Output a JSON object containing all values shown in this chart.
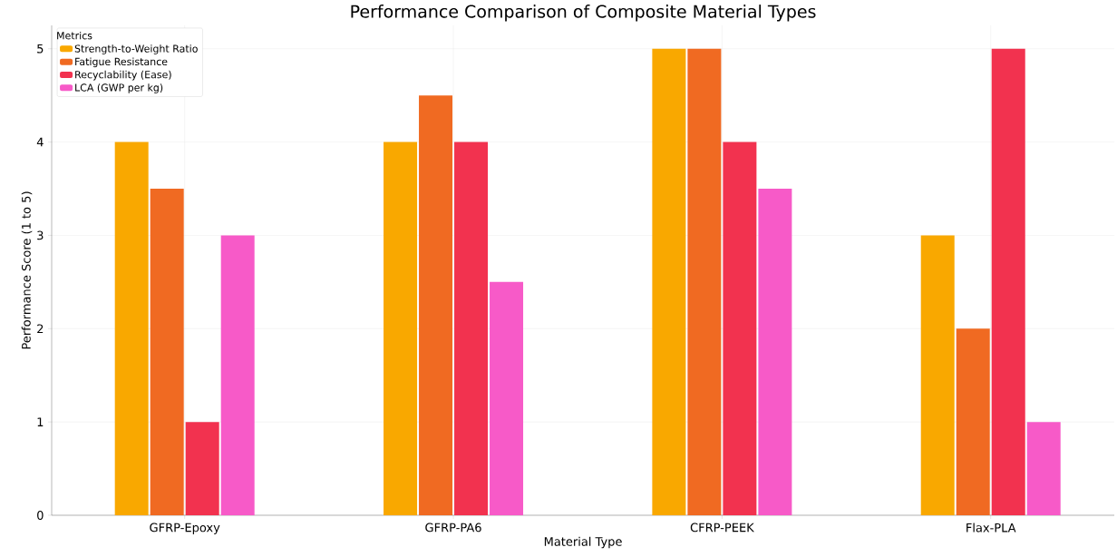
{
  "chart_data": {
    "type": "bar",
    "title": "Performance Comparison of Composite Material Types",
    "xlabel": "Material Type",
    "ylabel": "Performance Score (1 to 5)",
    "legend_title": "Metrics",
    "categories": [
      "GFRP-Epoxy",
      "GFRP-PA6",
      "CFRP-PEEK",
      "Flax-PLA"
    ],
    "series": [
      {
        "name": "Strength-to-Weight Ratio",
        "color": "#f9a800",
        "values": [
          4,
          4,
          5,
          3
        ]
      },
      {
        "name": "Fatigue Resistance",
        "color": "#f06a22",
        "values": [
          3.5,
          4.5,
          5,
          2
        ]
      },
      {
        "name": "Recyclability (Ease)",
        "color": "#f2324f",
        "values": [
          1,
          4,
          4,
          5
        ]
      },
      {
        "name": "LCA (GWP per kg)",
        "color": "#f75ac8",
        "values": [
          3,
          2.5,
          3.5,
          1
        ]
      }
    ],
    "ylim": [
      0,
      5.25
    ],
    "yticks": [
      0,
      1,
      2,
      3,
      4,
      5
    ],
    "grid": true,
    "legend": "top left"
  }
}
